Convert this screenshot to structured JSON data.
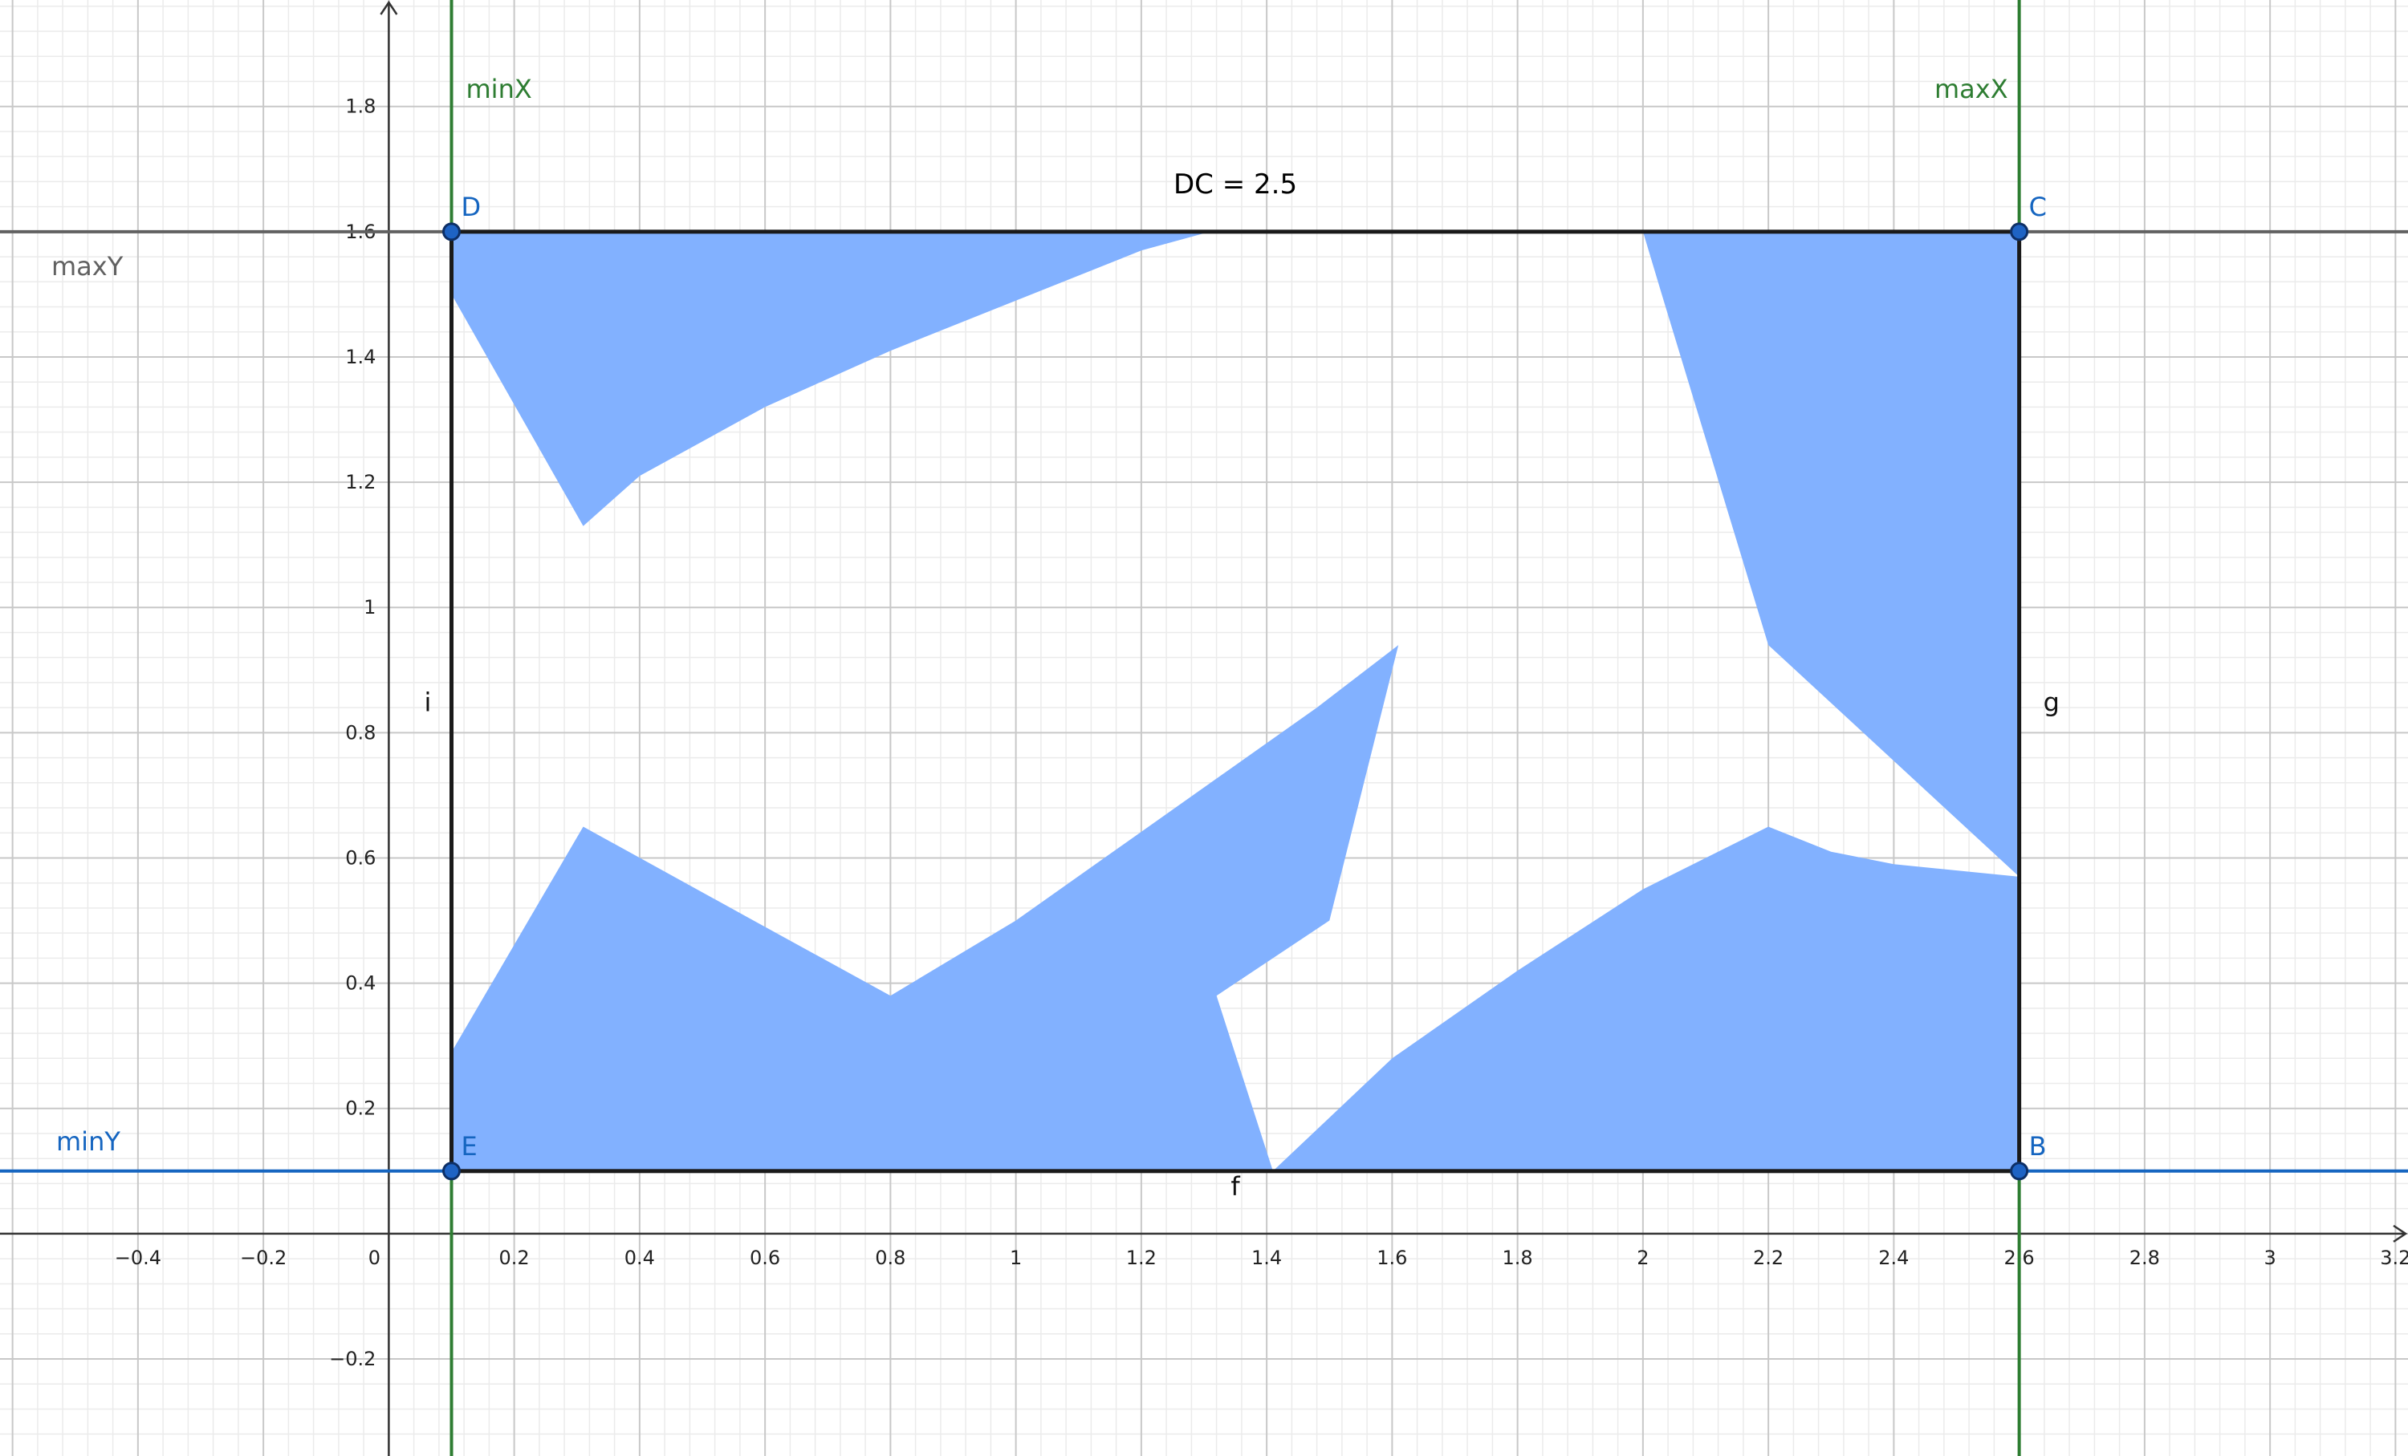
{
  "view": {
    "x_range": [
      -0.62,
      3.22
    ],
    "y_range": [
      -0.355,
      1.97
    ],
    "minor_step": 0.04,
    "major_step": 0.2,
    "grid": true
  },
  "axes": {
    "x_ticks": [
      {
        "value": -0.4,
        "label": "−0.4"
      },
      {
        "value": -0.2,
        "label": "−0.2"
      },
      {
        "value": 0,
        "label": "0"
      },
      {
        "value": 0.2,
        "label": "0.2"
      },
      {
        "value": 0.4,
        "label": "0.4"
      },
      {
        "value": 0.6,
        "label": "0.6"
      },
      {
        "value": 0.8,
        "label": "0.8"
      },
      {
        "value": 1,
        "label": "1"
      },
      {
        "value": 1.2,
        "label": "1.2"
      },
      {
        "value": 1.4,
        "label": "1.4"
      },
      {
        "value": 1.6,
        "label": "1.6"
      },
      {
        "value": 1.8,
        "label": "1.8"
      },
      {
        "value": 2,
        "label": "2"
      },
      {
        "value": 2.2,
        "label": "2.2"
      },
      {
        "value": 2.4,
        "label": "2.4"
      },
      {
        "value": 2.6,
        "label": "2.6"
      },
      {
        "value": 2.8,
        "label": "2.8"
      },
      {
        "value": 3,
        "label": "3"
      },
      {
        "value": 3.2,
        "label": "3.2"
      }
    ],
    "y_ticks": [
      {
        "value": -0.2,
        "label": "−0.2"
      },
      {
        "value": 0.2,
        "label": "0.2"
      },
      {
        "value": 0.4,
        "label": "0.4"
      },
      {
        "value": 0.6,
        "label": "0.6"
      },
      {
        "value": 0.8,
        "label": "0.8"
      },
      {
        "value": 1,
        "label": "1"
      },
      {
        "value": 1.2,
        "label": "1.2"
      },
      {
        "value": 1.4,
        "label": "1.4"
      },
      {
        "value": 1.6,
        "label": "1.6"
      },
      {
        "value": 1.8,
        "label": "1.8"
      }
    ]
  },
  "lines": {
    "minX": {
      "label": "minX",
      "value": 0.1,
      "color": "#2E7D32"
    },
    "maxX": {
      "label": "maxX",
      "value": 2.6,
      "color": "#2E7D32"
    },
    "minY": {
      "label": "minY",
      "value": 0.1,
      "color": "#1565C0"
    },
    "maxY": {
      "label": "maxY",
      "value": 1.6,
      "color": "#616161"
    }
  },
  "points": [
    {
      "name": "D",
      "x": 0.1,
      "y": 1.6
    },
    {
      "name": "C",
      "x": 2.6,
      "y": 1.6
    },
    {
      "name": "B",
      "x": 2.6,
      "y": 0.1
    },
    {
      "name": "E",
      "x": 0.1,
      "y": 0.1
    }
  ],
  "sides": {
    "i": "i",
    "g": "g",
    "f": "f"
  },
  "dc_text": "DC = 2.5",
  "colors": {
    "region_fill": "#82B1FF",
    "rect_stroke": "#1a1a1a",
    "point_fill": "#1E63C4",
    "major_grid": "#c8c8c8",
    "minor_grid": "#ebebeb",
    "axis": "#333333"
  },
  "regions": [
    [
      [
        0.1,
        1.6
      ],
      [
        1.31,
        1.6
      ],
      [
        1.2,
        1.57
      ],
      [
        1.0,
        1.49
      ],
      [
        0.8,
        1.41
      ],
      [
        0.6,
        1.32
      ],
      [
        0.4,
        1.21
      ],
      [
        0.31,
        1.13
      ],
      [
        0.1,
        1.5
      ]
    ],
    [
      [
        2.0,
        1.6
      ],
      [
        2.6,
        1.6
      ],
      [
        2.6,
        0.57
      ],
      [
        2.2,
        0.94
      ],
      [
        2.03,
        1.5
      ]
    ],
    [
      [
        0.1,
        0.1
      ],
      [
        1.41,
        0.1
      ],
      [
        1.32,
        0.38
      ],
      [
        1.5,
        0.5
      ],
      [
        1.61,
        0.94
      ],
      [
        1.48,
        0.84
      ],
      [
        1.0,
        0.5
      ],
      [
        0.8,
        0.38
      ],
      [
        0.6,
        0.49
      ],
      [
        0.31,
        0.65
      ],
      [
        0.1,
        0.29
      ]
    ],
    [
      [
        1.41,
        0.1
      ],
      [
        2.6,
        0.1
      ],
      [
        2.6,
        0.57
      ],
      [
        2.4,
        0.59
      ],
      [
        2.3,
        0.61
      ],
      [
        2.2,
        0.65
      ],
      [
        2.0,
        0.55
      ],
      [
        1.8,
        0.42
      ],
      [
        1.6,
        0.28
      ]
    ]
  ]
}
